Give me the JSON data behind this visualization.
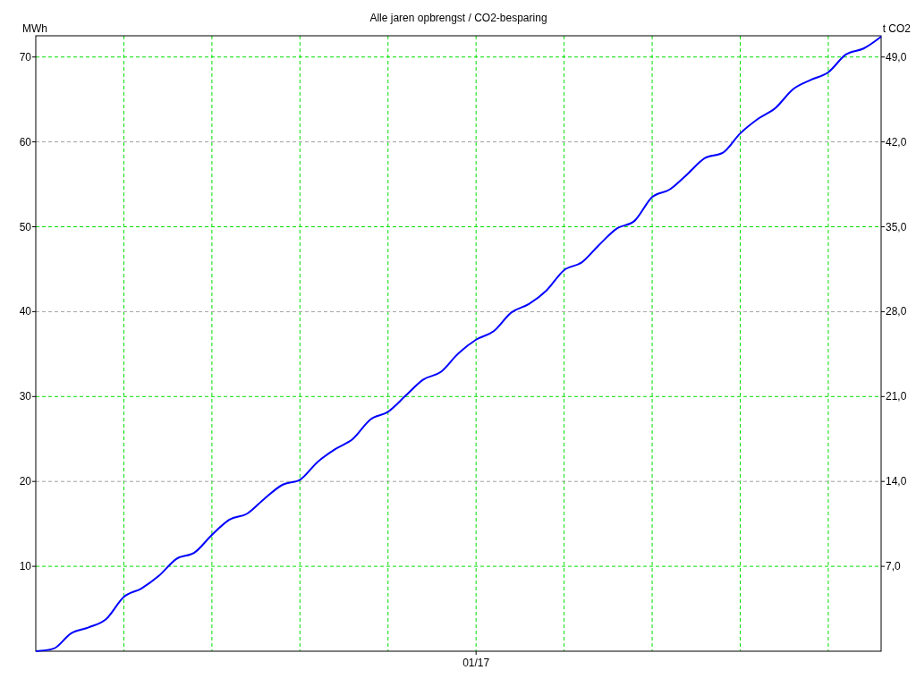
{
  "chart_data": {
    "type": "line",
    "title": "Alle jaren opbrengst / CO2-besparing",
    "ylabel": "MWh",
    "y2label": "t CO2",
    "categories": [
      null,
      null,
      null,
      null,
      null,
      null,
      null,
      null,
      null,
      null,
      null,
      null,
      null,
      null,
      null,
      null,
      null,
      null,
      null,
      null,
      null,
      null,
      null,
      null,
      null,
      "01/17",
      null,
      null,
      null,
      null,
      null,
      null,
      null,
      null,
      null,
      null,
      null,
      null,
      null,
      null,
      null,
      null,
      null,
      null,
      null,
      null,
      null,
      null,
      null
    ],
    "ylim": [
      0,
      72.5
    ],
    "yticks": [
      10,
      20,
      30,
      40,
      50,
      60,
      70
    ],
    "y2lim": [
      0,
      50.75
    ],
    "y2ticks": [
      {
        "value": 7,
        "label": "7,0"
      },
      {
        "value": 14,
        "label": "14,0"
      },
      {
        "value": 21,
        "label": "21,0"
      },
      {
        "value": 28,
        "label": "28,0"
      },
      {
        "value": 35,
        "label": "35,0"
      },
      {
        "value": 42,
        "label": "42,0"
      },
      {
        "value": 49,
        "label": "49,0"
      }
    ],
    "grid": true,
    "marker": "none",
    "line_style": "solid",
    "series": [
      {
        "color": "#0000ff",
        "values": [
          0,
          0.3,
          2.1,
          2.8,
          3.8,
          6.4,
          7.4,
          8.9,
          10.9,
          11.6,
          13.7,
          15.5,
          16.2,
          18.0,
          19.6,
          20.2,
          22.3,
          23.8,
          25.0,
          27.3,
          28.2,
          30.1,
          32.0,
          32.9,
          35.1,
          36.7,
          37.7,
          39.9,
          40.9,
          42.5,
          44.9,
          45.8,
          47.9,
          49.8,
          50.7,
          53.5,
          54.4,
          56.2,
          58.1,
          58.7,
          61.0,
          62.7,
          64.0,
          66.2,
          67.3,
          68.2,
          70.3,
          71.0,
          72.4
        ]
      }
    ]
  }
}
